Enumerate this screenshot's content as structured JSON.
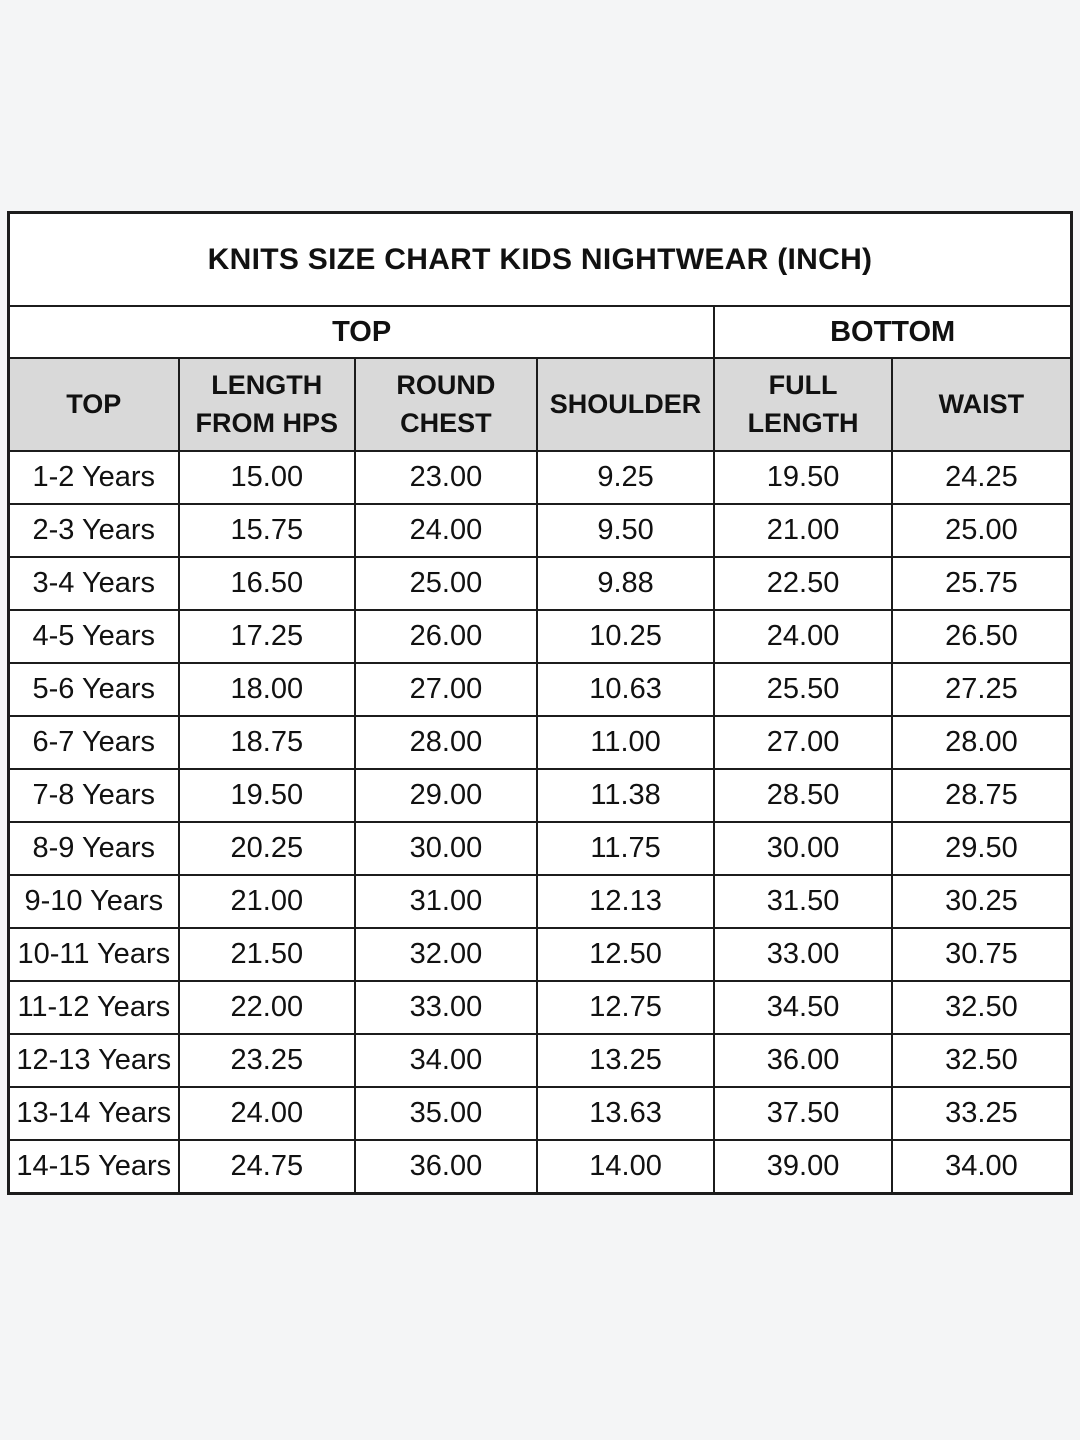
{
  "page": {
    "background_color": "#f4f5f6",
    "border_color": "#1c1c1c",
    "header_bg_color": "#d9d9d9",
    "cell_bg_color": "#ffffff"
  },
  "table": {
    "title": "KNITS SIZE CHART KIDS NIGHTWEAR (INCH)",
    "group_headers": [
      {
        "label": "TOP",
        "colspan": 4
      },
      {
        "label": "BOTTOM",
        "colspan": 2
      }
    ],
    "columns": [
      "TOP",
      "LENGTH FROM HPS",
      "ROUND CHEST",
      "SHOULDER",
      "FULL LENGTH",
      "WAIST"
    ],
    "rows": [
      [
        "1-2 Years",
        "15.00",
        "23.00",
        "9.25",
        "19.50",
        "24.25"
      ],
      [
        "2-3 Years",
        "15.75",
        "24.00",
        "9.50",
        "21.00",
        "25.00"
      ],
      [
        "3-4 Years",
        "16.50",
        "25.00",
        "9.88",
        "22.50",
        "25.75"
      ],
      [
        "4-5 Years",
        "17.25",
        "26.00",
        "10.25",
        "24.00",
        "26.50"
      ],
      [
        "5-6 Years",
        "18.00",
        "27.00",
        "10.63",
        "25.50",
        "27.25"
      ],
      [
        "6-7 Years",
        "18.75",
        "28.00",
        "11.00",
        "27.00",
        "28.00"
      ],
      [
        "7-8 Years",
        "19.50",
        "29.00",
        "11.38",
        "28.50",
        "28.75"
      ],
      [
        "8-9 Years",
        "20.25",
        "30.00",
        "11.75",
        "30.00",
        "29.50"
      ],
      [
        "9-10 Years",
        "21.00",
        "31.00",
        "12.13",
        "31.50",
        "30.25"
      ],
      [
        "10-11 Years",
        "21.50",
        "32.00",
        "12.50",
        "33.00",
        "30.75"
      ],
      [
        "11-12 Years",
        "22.00",
        "33.00",
        "12.75",
        "34.50",
        "32.50"
      ],
      [
        "12-13 Years",
        "23.25",
        "34.00",
        "13.25",
        "36.00",
        "32.50"
      ],
      [
        "13-14 Years",
        "24.00",
        "35.00",
        "13.63",
        "37.50",
        "33.25"
      ],
      [
        "14-15 Years",
        "24.75",
        "36.00",
        "14.00",
        "39.00",
        "34.00"
      ]
    ]
  },
  "chart_data": {
    "type": "table",
    "title": "KNITS SIZE CHART KIDS NIGHTWEAR (INCH)",
    "column_groups": [
      {
        "label": "TOP",
        "columns": [
          "TOP",
          "LENGTH FROM HPS",
          "ROUND CHEST",
          "SHOULDER"
        ]
      },
      {
        "label": "BOTTOM",
        "columns": [
          "FULL LENGTH",
          "WAIST"
        ]
      }
    ],
    "columns": [
      "TOP",
      "LENGTH FROM HPS",
      "ROUND CHEST",
      "SHOULDER",
      "FULL LENGTH",
      "WAIST"
    ],
    "unit": "inch",
    "rows": [
      {
        "size": "1-2 Years",
        "length_from_hps": 15.0,
        "round_chest": 23.0,
        "shoulder": 9.25,
        "full_length": 19.5,
        "waist": 24.25
      },
      {
        "size": "2-3 Years",
        "length_from_hps": 15.75,
        "round_chest": 24.0,
        "shoulder": 9.5,
        "full_length": 21.0,
        "waist": 25.0
      },
      {
        "size": "3-4 Years",
        "length_from_hps": 16.5,
        "round_chest": 25.0,
        "shoulder": 9.88,
        "full_length": 22.5,
        "waist": 25.75
      },
      {
        "size": "4-5 Years",
        "length_from_hps": 17.25,
        "round_chest": 26.0,
        "shoulder": 10.25,
        "full_length": 24.0,
        "waist": 26.5
      },
      {
        "size": "5-6 Years",
        "length_from_hps": 18.0,
        "round_chest": 27.0,
        "shoulder": 10.63,
        "full_length": 25.5,
        "waist": 27.25
      },
      {
        "size": "6-7 Years",
        "length_from_hps": 18.75,
        "round_chest": 28.0,
        "shoulder": 11.0,
        "full_length": 27.0,
        "waist": 28.0
      },
      {
        "size": "7-8 Years",
        "length_from_hps": 19.5,
        "round_chest": 29.0,
        "shoulder": 11.38,
        "full_length": 28.5,
        "waist": 28.75
      },
      {
        "size": "8-9 Years",
        "length_from_hps": 20.25,
        "round_chest": 30.0,
        "shoulder": 11.75,
        "full_length": 30.0,
        "waist": 29.5
      },
      {
        "size": "9-10 Years",
        "length_from_hps": 21.0,
        "round_chest": 31.0,
        "shoulder": 12.13,
        "full_length": 31.5,
        "waist": 30.25
      },
      {
        "size": "10-11 Years",
        "length_from_hps": 21.5,
        "round_chest": 32.0,
        "shoulder": 12.5,
        "full_length": 33.0,
        "waist": 30.75
      },
      {
        "size": "11-12 Years",
        "length_from_hps": 22.0,
        "round_chest": 33.0,
        "shoulder": 12.75,
        "full_length": 34.5,
        "waist": 32.5
      },
      {
        "size": "12-13 Years",
        "length_from_hps": 23.25,
        "round_chest": 34.0,
        "shoulder": 13.25,
        "full_length": 36.0,
        "waist": 32.5
      },
      {
        "size": "13-14 Years",
        "length_from_hps": 24.0,
        "round_chest": 35.0,
        "shoulder": 13.63,
        "full_length": 37.5,
        "waist": 33.25
      },
      {
        "size": "14-15 Years",
        "length_from_hps": 24.75,
        "round_chest": 36.0,
        "shoulder": 14.0,
        "full_length": 39.0,
        "waist": 34.0
      }
    ]
  }
}
